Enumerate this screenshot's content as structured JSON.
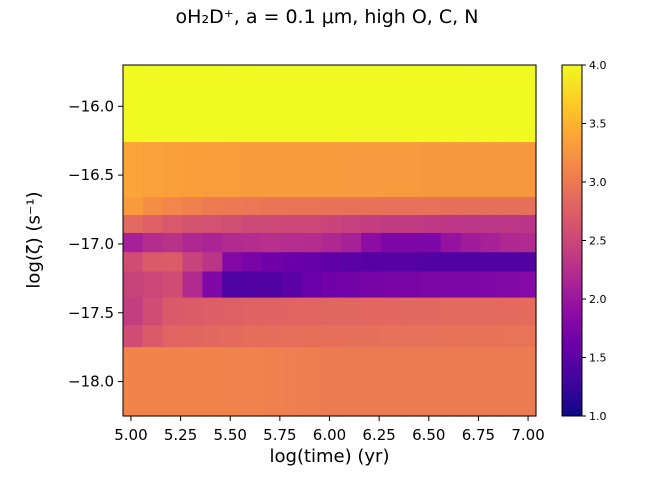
{
  "chart_data": {
    "type": "heatmap",
    "title": "oH₂D⁺, a = 0.1 μm, high O, C, N",
    "xlabel": "log(time) (yr)",
    "ylabel": "log(ζ)  (s⁻¹)",
    "xlim": [
      4.96,
      7.04
    ],
    "ylim": [
      -18.25,
      -15.7
    ],
    "x_ticks": [
      "5.00",
      "5.25",
      "5.50",
      "5.75",
      "6.00",
      "6.25",
      "6.50",
      "6.75",
      "7.00"
    ],
    "x_tick_values": [
      5.0,
      5.25,
      5.5,
      5.75,
      6.0,
      6.25,
      6.5,
      6.75,
      7.0
    ],
    "y_ticks": [
      "−16.0",
      "−16.5",
      "−17.0",
      "−17.5",
      "−18.0"
    ],
    "y_tick_values": [
      -16.0,
      -16.5,
      -17.0,
      -17.5,
      -18.0
    ],
    "colorbar": {
      "min": 1.0,
      "max": 4.0,
      "ticks": [
        "1.0",
        "1.5",
        "2.0",
        "2.5",
        "3.0",
        "3.5",
        "4.0"
      ],
      "tick_values": [
        1.0,
        1.5,
        2.0,
        2.5,
        3.0,
        3.5,
        4.0
      ],
      "colormap": "plasma"
    },
    "grid": false,
    "x_edges": [
      4.96,
      5.06,
      5.16,
      5.26,
      5.36,
      5.46,
      5.56,
      5.66,
      5.76,
      5.86,
      5.96,
      6.06,
      6.16,
      6.26,
      6.36,
      6.46,
      6.56,
      6.66,
      6.76,
      6.86,
      6.96,
      7.04
    ],
    "y_edges": [
      -15.7,
      -16.26,
      -16.66,
      -16.79,
      -16.92,
      -17.06,
      -17.2,
      -17.39,
      -17.59,
      -17.75,
      -18.25
    ],
    "values": [
      [
        4.0,
        4.0,
        4.0,
        4.0,
        4.0,
        4.0,
        4.0,
        4.0,
        4.0,
        4.0,
        4.0,
        4.0,
        4.0,
        4.0,
        4.0,
        4.0,
        4.0,
        4.0,
        4.0,
        4.0,
        4.0
      ],
      [
        3.38,
        3.36,
        3.34,
        3.33,
        3.32,
        3.31,
        3.3,
        3.3,
        3.3,
        3.3,
        3.3,
        3.29,
        3.29,
        3.29,
        3.29,
        3.28,
        3.28,
        3.28,
        3.28,
        3.28,
        3.28
      ],
      [
        3.3,
        3.18,
        3.12,
        3.06,
        3.02,
        3.0,
        2.98,
        2.96,
        2.94,
        2.94,
        2.93,
        2.93,
        2.93,
        2.92,
        2.92,
        2.92,
        2.91,
        2.91,
        2.91,
        2.91,
        2.91
      ],
      [
        2.85,
        2.76,
        2.68,
        2.62,
        2.6,
        2.56,
        2.52,
        2.52,
        2.5,
        2.5,
        2.47,
        2.43,
        2.4,
        2.38,
        2.38,
        2.35,
        2.33,
        2.32,
        2.32,
        2.32,
        2.3
      ],
      [
        2.1,
        2.22,
        2.28,
        2.18,
        2.14,
        2.2,
        2.22,
        2.25,
        2.24,
        2.22,
        2.18,
        2.1,
        1.88,
        1.75,
        1.75,
        1.75,
        1.95,
        2.05,
        2.1,
        2.18,
        2.2
      ],
      [
        2.55,
        2.7,
        2.72,
        2.45,
        2.3,
        1.8,
        1.72,
        1.65,
        1.6,
        1.56,
        1.52,
        1.48,
        1.45,
        1.45,
        1.45,
        1.42,
        1.42,
        1.42,
        1.42,
        1.42,
        1.42
      ],
      [
        2.45,
        2.5,
        2.55,
        2.2,
        1.78,
        1.4,
        1.42,
        1.42,
        1.48,
        1.6,
        1.65,
        1.68,
        1.7,
        1.72,
        1.72,
        1.75,
        1.75,
        1.75,
        1.78,
        1.8,
        1.82
      ],
      [
        2.4,
        2.55,
        2.7,
        2.72,
        2.74,
        2.76,
        2.78,
        2.78,
        2.8,
        2.8,
        2.82,
        2.82,
        2.83,
        2.83,
        2.84,
        2.84,
        2.85,
        2.85,
        2.86,
        2.86,
        2.87
      ],
      [
        2.55,
        2.7,
        2.8,
        2.82,
        2.84,
        2.86,
        2.88,
        2.88,
        2.89,
        2.9,
        2.9,
        2.91,
        2.91,
        2.92,
        2.92,
        2.92,
        2.93,
        2.93,
        2.93,
        2.94,
        2.94
      ],
      [
        3.1,
        3.1,
        3.1,
        3.1,
        3.1,
        3.09,
        3.08,
        3.06,
        3.04,
        3.03,
        3.02,
        3.02,
        3.02,
        3.02,
        3.02,
        3.02,
        3.02,
        3.02,
        3.02,
        3.02,
        3.02
      ]
    ]
  }
}
